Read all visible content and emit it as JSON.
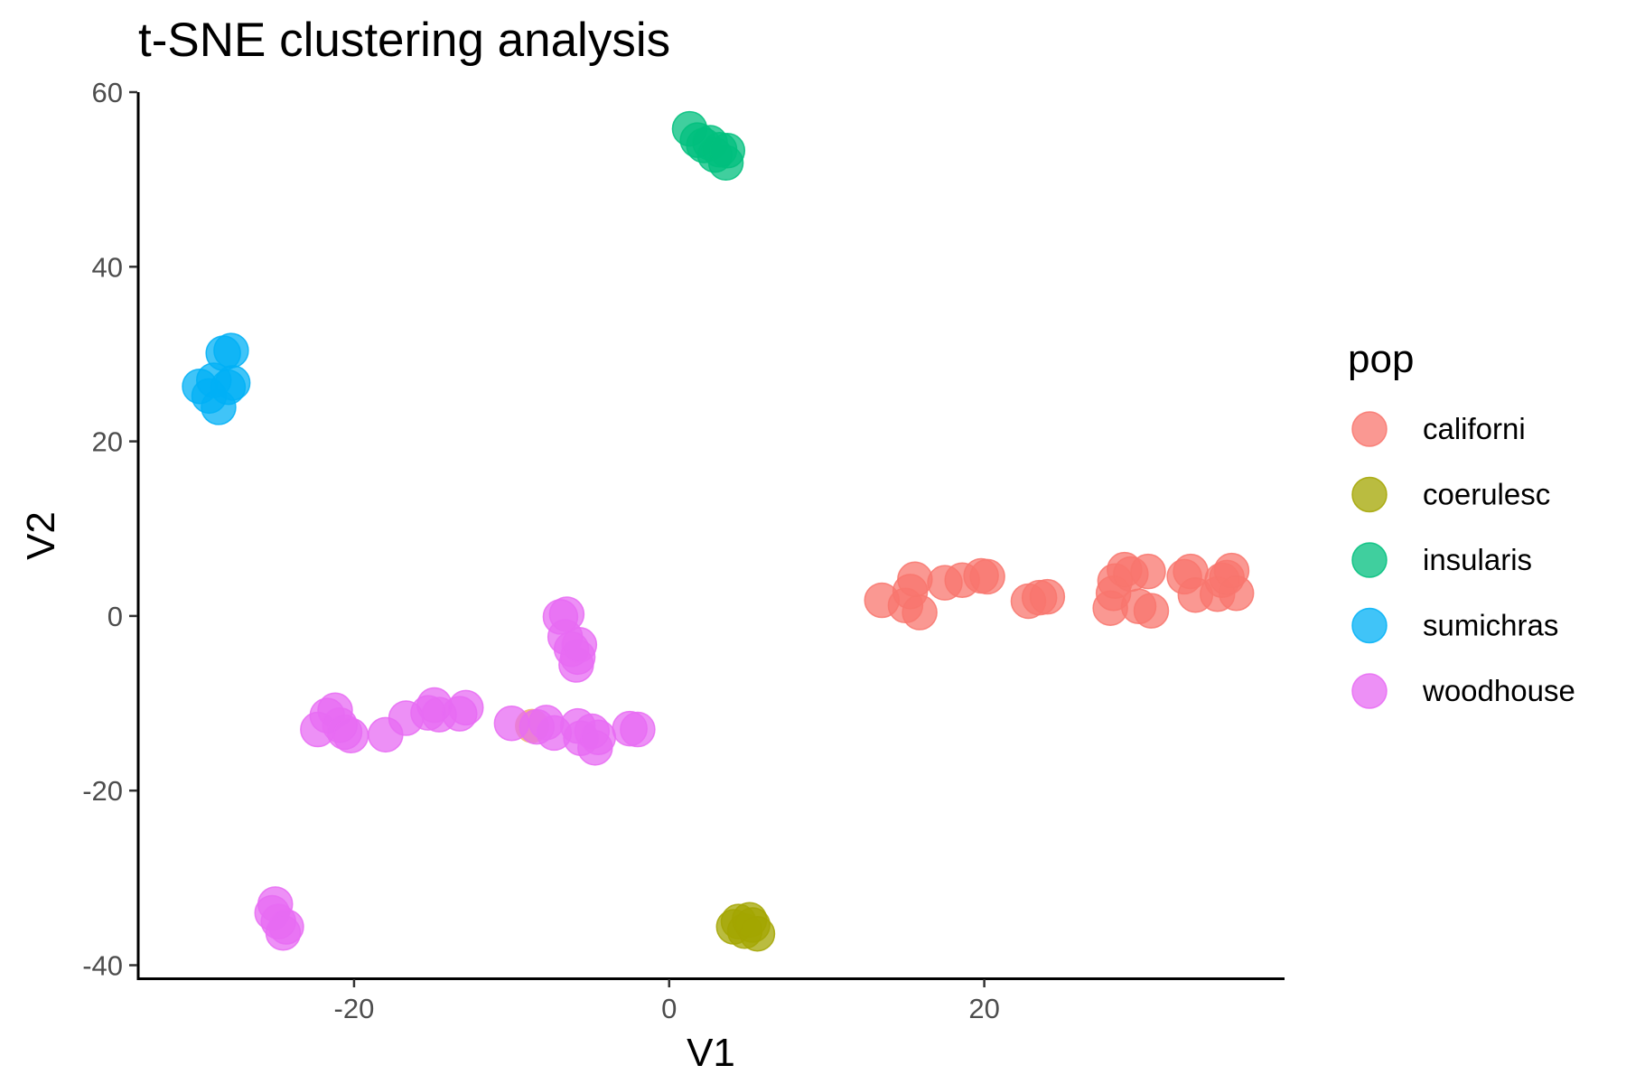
{
  "chart_data": {
    "type": "scatter",
    "title": "t-SNE clustering analysis",
    "xlabel": "V1",
    "ylabel": "V2",
    "xlim": [
      -33.7,
      39
    ],
    "ylim": [
      -41.5,
      60
    ],
    "xticks": [
      -20,
      0,
      20
    ],
    "yticks": [
      -40,
      -20,
      0,
      20,
      40,
      60
    ],
    "grid": false,
    "legend_title": "pop",
    "legend_position": "right",
    "series": [
      {
        "name": "californi",
        "color": "#F8766D",
        "points": [
          [
            13.5,
            1.8
          ],
          [
            15,
            1.2
          ],
          [
            15.3,
            2.8
          ],
          [
            15.6,
            4.2
          ],
          [
            15.9,
            0.4
          ],
          [
            17.5,
            3.8
          ],
          [
            18.6,
            4.1
          ],
          [
            19.8,
            4.6
          ],
          [
            20.2,
            4.5
          ],
          [
            22.8,
            1.7
          ],
          [
            23.5,
            2.1
          ],
          [
            24,
            2.2
          ],
          [
            28,
            0.9
          ],
          [
            28.2,
            2.6
          ],
          [
            28.3,
            4
          ],
          [
            28.9,
            5.3
          ],
          [
            29.3,
            4.8
          ],
          [
            29.8,
            1.1
          ],
          [
            30.4,
            5.1
          ],
          [
            30.6,
            0.6
          ],
          [
            32.7,
            4.5
          ],
          [
            33.1,
            5.1
          ],
          [
            33.4,
            2.4
          ],
          [
            34.8,
            2.5
          ],
          [
            35.1,
            4.1
          ],
          [
            35.4,
            4.4
          ],
          [
            35.7,
            5.2
          ],
          [
            36,
            2.6
          ]
        ]
      },
      {
        "name": "coerulesc",
        "color": "#A3A500",
        "points": [
          [
            4.1,
            -35.6
          ],
          [
            4.4,
            -35
          ],
          [
            4.8,
            -36.1
          ],
          [
            5.1,
            -34.8
          ],
          [
            5.3,
            -35.4
          ],
          [
            5.6,
            -36.4
          ]
        ]
      },
      {
        "name": "insularis",
        "color": "#00BF7D",
        "points": [
          [
            1.3,
            55.8
          ],
          [
            1.8,
            54.5
          ],
          [
            2.2,
            53.9
          ],
          [
            2.6,
            54.2
          ],
          [
            2.9,
            52.8
          ],
          [
            3.2,
            53.4
          ],
          [
            3.6,
            51.9
          ],
          [
            3.7,
            53.3
          ]
        ]
      },
      {
        "name": "sumichras",
        "color": "#00B0F6",
        "points": [
          [
            -29.8,
            26.3
          ],
          [
            -29.2,
            25.2
          ],
          [
            -28.9,
            27
          ],
          [
            -28.6,
            23.9
          ],
          [
            -28.3,
            30.1
          ],
          [
            -28,
            26.2
          ],
          [
            -27.8,
            30.4
          ],
          [
            -27.7,
            26.7
          ]
        ]
      },
      {
        "name": "woodhouse",
        "color": "#E76BF3",
        "points": [
          [
            -25.2,
            -34
          ],
          [
            -25,
            -33
          ],
          [
            -24.8,
            -35
          ],
          [
            -24.5,
            -36.3
          ],
          [
            -24.3,
            -35.6
          ],
          [
            -22.3,
            -13
          ],
          [
            -21.7,
            -11.4
          ],
          [
            -21.2,
            -10.8
          ],
          [
            -20.9,
            -12.5
          ],
          [
            -20.6,
            -13.3
          ],
          [
            -20.2,
            -13.7
          ],
          [
            -18,
            -13.6
          ],
          [
            -16.7,
            -11.7
          ],
          [
            -15.3,
            -11.1
          ],
          [
            -14.9,
            -10.2
          ],
          [
            -14.6,
            -11.3
          ],
          [
            -13.3,
            -11.2
          ],
          [
            -12.9,
            -10.5
          ],
          [
            -10,
            -12.3
          ],
          [
            -8.4,
            -12.7
          ],
          [
            -7.8,
            -12.2
          ],
          [
            -7.3,
            -13.4
          ],
          [
            -6.9,
            -0.1
          ],
          [
            -6.5,
            0.2
          ],
          [
            -6.6,
            -2.4
          ],
          [
            -6.2,
            -3.8
          ],
          [
            -5.8,
            -4.7
          ],
          [
            -5.9,
            -5.6
          ],
          [
            -5.7,
            -3.3
          ],
          [
            -5.8,
            -12.6
          ],
          [
            -5.6,
            -14
          ],
          [
            -4.9,
            -13.2
          ],
          [
            -4.7,
            -15.1
          ],
          [
            -4.5,
            -13.9
          ],
          [
            -2.5,
            -12.9
          ],
          [
            -2,
            -13
          ]
        ]
      }
    ],
    "extra_points": [
      {
        "color": "#E68613",
        "x": -8.7,
        "y": -12.6
      }
    ]
  }
}
